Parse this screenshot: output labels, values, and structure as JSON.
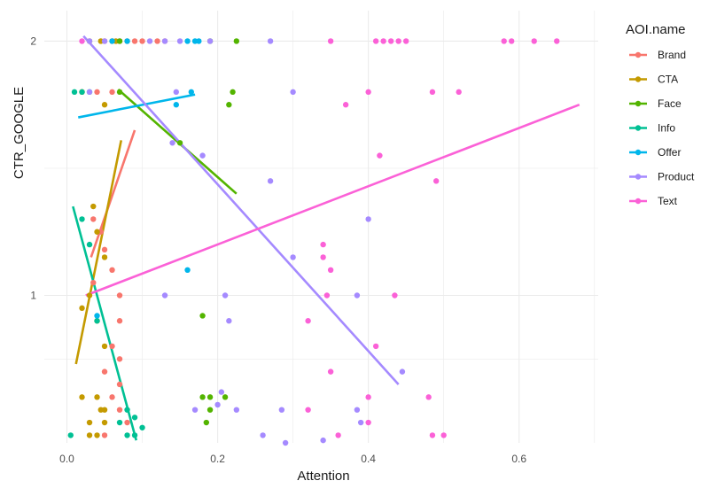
{
  "chart_data": {
    "type": "scatter",
    "xlabel": "Attention",
    "ylabel": "CTR_GOOGLE",
    "xlim": [
      -0.03,
      0.705
    ],
    "ylim": [
      0.42,
      2.12
    ],
    "x_ticks": [
      0.0,
      0.2,
      0.4,
      0.6
    ],
    "x_tick_labels": [
      "0.0",
      "0.2",
      "0.4",
      "0.6"
    ],
    "y_ticks": [
      1,
      2
    ],
    "y_tick_labels": [
      "1",
      "2"
    ],
    "grid": true,
    "legend_title": "AOI.name",
    "legend_position": "right",
    "series": [
      {
        "name": "Brand",
        "color": "#F8766D",
        "points": [
          [
            0.05,
            2
          ],
          [
            0.06,
            2
          ],
          [
            0.07,
            2
          ],
          [
            0.08,
            2
          ],
          [
            0.09,
            2
          ],
          [
            0.1,
            2
          ],
          [
            0.12,
            2
          ],
          [
            0.13,
            2
          ],
          [
            0.02,
            1.8
          ],
          [
            0.04,
            1.8
          ],
          [
            0.06,
            1.8
          ],
          [
            0.035,
            1.3
          ],
          [
            0.045,
            1.25
          ],
          [
            0.05,
            1.18
          ],
          [
            0.06,
            1.1
          ],
          [
            0.035,
            1.05
          ],
          [
            0.07,
            1.0
          ],
          [
            0.07,
            0.9
          ],
          [
            0.06,
            0.8
          ],
          [
            0.07,
            0.75
          ],
          [
            0.05,
            0.7
          ],
          [
            0.07,
            0.65
          ],
          [
            0.06,
            0.6
          ],
          [
            0.07,
            0.55
          ],
          [
            0.08,
            0.5
          ],
          [
            0.05,
            0.45
          ]
        ],
        "trend": [
          [
            0.032,
            1.15
          ],
          [
            0.09,
            1.65
          ]
        ]
      },
      {
        "name": "CTA",
        "color": "#C49A00",
        "points": [
          [
            0.03,
            2
          ],
          [
            0.045,
            2
          ],
          [
            0.065,
            2
          ],
          [
            0.02,
            1.8
          ],
          [
            0.05,
            1.75
          ],
          [
            0.035,
            1.35
          ],
          [
            0.04,
            1.25
          ],
          [
            0.05,
            1.15
          ],
          [
            0.03,
            1.0
          ],
          [
            0.02,
            0.95
          ],
          [
            0.04,
            0.9
          ],
          [
            0.05,
            0.8
          ],
          [
            0.02,
            0.6
          ],
          [
            0.04,
            0.6
          ],
          [
            0.045,
            0.55
          ],
          [
            0.05,
            0.55
          ],
          [
            0.03,
            0.5
          ],
          [
            0.05,
            0.5
          ],
          [
            0.03,
            0.45
          ],
          [
            0.04,
            0.45
          ]
        ],
        "trend": [
          [
            0.012,
            0.73
          ],
          [
            0.072,
            1.61
          ]
        ]
      },
      {
        "name": "Face",
        "color": "#53B400",
        "points": [
          [
            0.07,
            2
          ],
          [
            0.19,
            2
          ],
          [
            0.225,
            2
          ],
          [
            0.07,
            1.8
          ],
          [
            0.22,
            1.8
          ],
          [
            0.215,
            1.75
          ],
          [
            0.15,
            1.6
          ],
          [
            0.18,
            0.92
          ],
          [
            0.18,
            0.6
          ],
          [
            0.19,
            0.6
          ],
          [
            0.21,
            0.6
          ],
          [
            0.19,
            0.55
          ],
          [
            0.185,
            0.5
          ]
        ],
        "trend": [
          [
            0.068,
            1.81
          ],
          [
            0.225,
            1.4
          ]
        ]
      },
      {
        "name": "Info",
        "color": "#00C094",
        "points": [
          [
            0.01,
            1.8
          ],
          [
            0.02,
            1.8
          ],
          [
            0.03,
            1.8
          ],
          [
            0.02,
            1.3
          ],
          [
            0.03,
            1.2
          ],
          [
            0.04,
            0.9
          ],
          [
            0.08,
            0.55
          ],
          [
            0.09,
            0.52
          ],
          [
            0.07,
            0.5
          ],
          [
            0.08,
            0.45
          ],
          [
            0.09,
            0.45
          ],
          [
            0.1,
            0.48
          ],
          [
            0.005,
            0.45
          ]
        ],
        "trend": [
          [
            0.008,
            1.35
          ],
          [
            0.092,
            0.43
          ]
        ]
      },
      {
        "name": "Offer",
        "color": "#00B6EB",
        "points": [
          [
            0.06,
            2
          ],
          [
            0.08,
            2
          ],
          [
            0.16,
            2
          ],
          [
            0.17,
            2
          ],
          [
            0.175,
            2
          ],
          [
            0.165,
            1.8
          ],
          [
            0.145,
            1.75
          ],
          [
            0.16,
            1.1
          ],
          [
            0.04,
            0.92
          ]
        ],
        "trend": [
          [
            0.015,
            1.7
          ],
          [
            0.17,
            1.79
          ]
        ]
      },
      {
        "name": "Product",
        "color": "#A58AFF",
        "points": [
          [
            0.03,
            2
          ],
          [
            0.05,
            2
          ],
          [
            0.11,
            2
          ],
          [
            0.13,
            2
          ],
          [
            0.15,
            2
          ],
          [
            0.19,
            2
          ],
          [
            0.27,
            2
          ],
          [
            0.03,
            1.8
          ],
          [
            0.145,
            1.8
          ],
          [
            0.3,
            1.8
          ],
          [
            0.14,
            1.6
          ],
          [
            0.18,
            1.55
          ],
          [
            0.27,
            1.45
          ],
          [
            0.4,
            1.3
          ],
          [
            0.3,
            1.15
          ],
          [
            0.13,
            1.0
          ],
          [
            0.21,
            1.0
          ],
          [
            0.385,
            1.0
          ],
          [
            0.215,
            0.9
          ],
          [
            0.445,
            0.7
          ],
          [
            0.205,
            0.62
          ],
          [
            0.2,
            0.57
          ],
          [
            0.17,
            0.55
          ],
          [
            0.225,
            0.55
          ],
          [
            0.285,
            0.55
          ],
          [
            0.385,
            0.55
          ],
          [
            0.39,
            0.5
          ],
          [
            0.26,
            0.45
          ],
          [
            0.34,
            0.43
          ],
          [
            0.29,
            0.42
          ]
        ],
        "trend": [
          [
            0.022,
            2.02
          ],
          [
            0.44,
            0.65
          ]
        ]
      },
      {
        "name": "Text",
        "color": "#FB61D7",
        "points": [
          [
            0.02,
            2
          ],
          [
            0.35,
            2
          ],
          [
            0.41,
            2
          ],
          [
            0.42,
            2
          ],
          [
            0.43,
            2
          ],
          [
            0.44,
            2
          ],
          [
            0.45,
            2
          ],
          [
            0.58,
            2
          ],
          [
            0.59,
            2
          ],
          [
            0.62,
            2
          ],
          [
            0.65,
            2
          ],
          [
            0.4,
            1.8
          ],
          [
            0.485,
            1.8
          ],
          [
            0.52,
            1.8
          ],
          [
            0.37,
            1.75
          ],
          [
            0.415,
            1.55
          ],
          [
            0.49,
            1.45
          ],
          [
            0.34,
            1.2
          ],
          [
            0.34,
            1.15
          ],
          [
            0.35,
            1.1
          ],
          [
            0.345,
            1.0
          ],
          [
            0.435,
            1.0
          ],
          [
            0.32,
            0.9
          ],
          [
            0.41,
            0.8
          ],
          [
            0.35,
            0.7
          ],
          [
            0.4,
            0.6
          ],
          [
            0.48,
            0.6
          ],
          [
            0.32,
            0.55
          ],
          [
            0.4,
            0.5
          ],
          [
            0.36,
            0.45
          ],
          [
            0.485,
            0.45
          ],
          [
            0.5,
            0.45
          ]
        ],
        "trend": [
          [
            0.025,
            1.0
          ],
          [
            0.68,
            1.75
          ]
        ]
      }
    ]
  }
}
